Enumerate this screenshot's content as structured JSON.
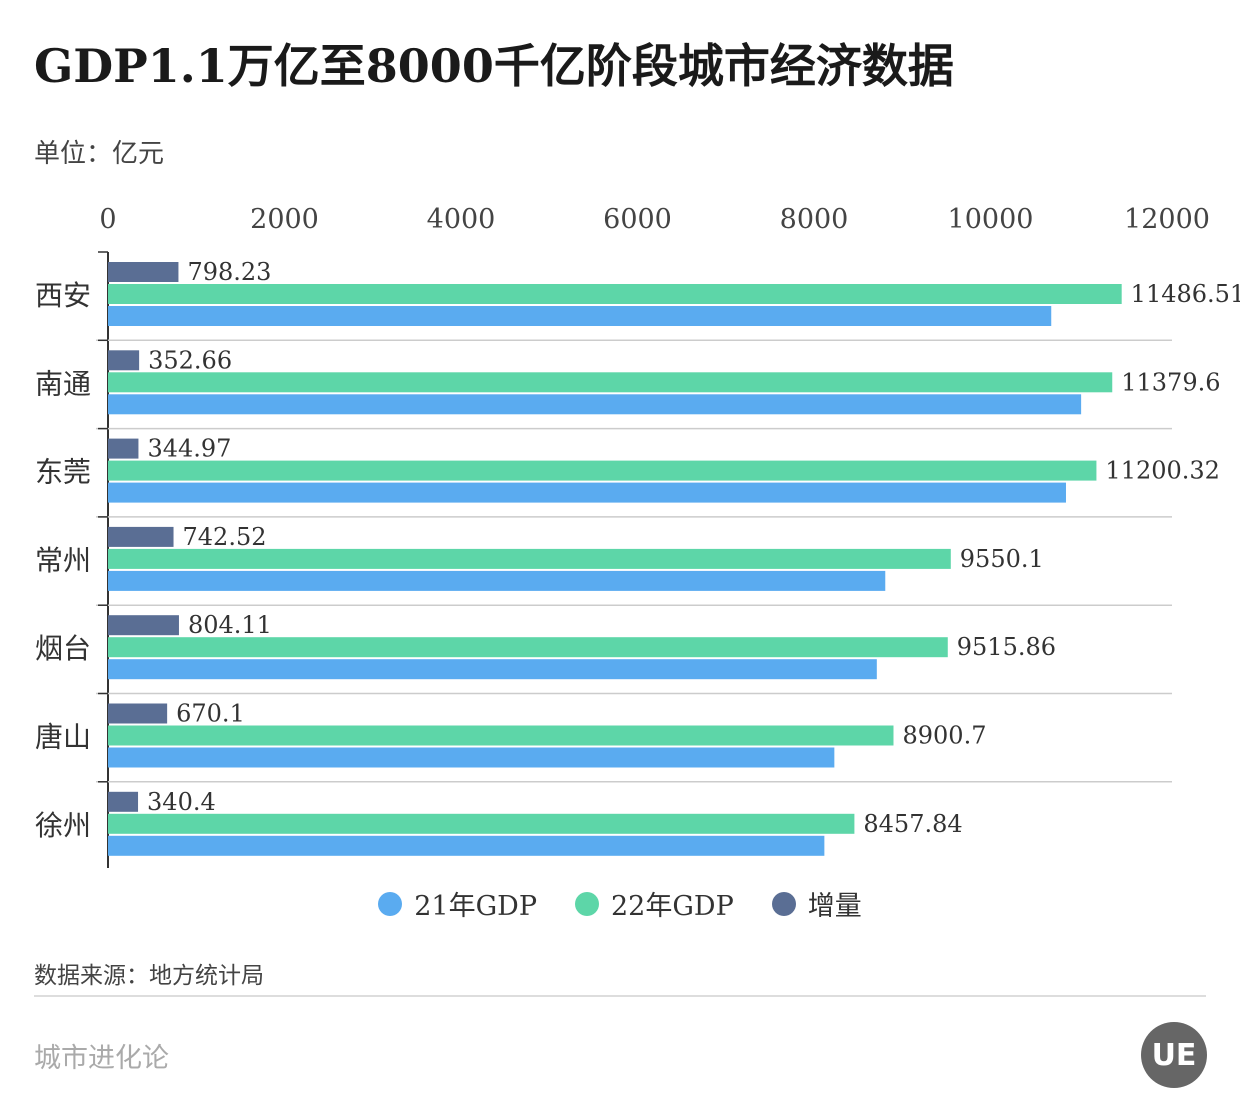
{
  "title": "GDP1.1万亿至8000千亿阶段城市经济数据",
  "unit": "单位：亿元",
  "source": "数据来源：地方统计局",
  "brand": "城市进化论",
  "logo_text": "UE",
  "colors": {
    "gdp21": "#5aabf0",
    "gdp22": "#5dd6a8",
    "increase": "#5a6e94"
  },
  "chart_data": {
    "type": "bar",
    "orientation": "horizontal",
    "categories": [
      "西安",
      "南通",
      "东莞",
      "常州",
      "烟台",
      "唐山",
      "徐州"
    ],
    "series": [
      {
        "name": "增量",
        "values": [
          798.23,
          352.66,
          344.97,
          742.52,
          804.11,
          670.1,
          340.4
        ],
        "labels": [
          "798.23",
          "352.66",
          "344.97",
          "742.52",
          "804.11",
          "670.1",
          "340.4"
        ]
      },
      {
        "name": "22年GDP",
        "values": [
          11486.51,
          11379.6,
          11200.32,
          9550.1,
          9515.86,
          8900.7,
          8457.84
        ],
        "labels": [
          "11486.51",
          "11379.6",
          "11200.32",
          "9550.1",
          "9515.86",
          "8900.7",
          "8457.84"
        ]
      },
      {
        "name": "21年GDP",
        "values": [
          10688.28,
          11026.94,
          10855.35,
          8807.58,
          8711.75,
          8230.6,
          8117.44
        ]
      }
    ],
    "xlim": [
      0,
      12000
    ],
    "xticks": [
      "0",
      "2000",
      "4000",
      "6000",
      "8000",
      "10000",
      "12000"
    ],
    "grid": false,
    "legend": [
      {
        "name": "21年GDP",
        "color": "#5aabf0"
      },
      {
        "name": "22年GDP",
        "color": "#5dd6a8"
      },
      {
        "name": "增量",
        "color": "#5a6e94"
      }
    ],
    "legend_position": "bottom"
  }
}
